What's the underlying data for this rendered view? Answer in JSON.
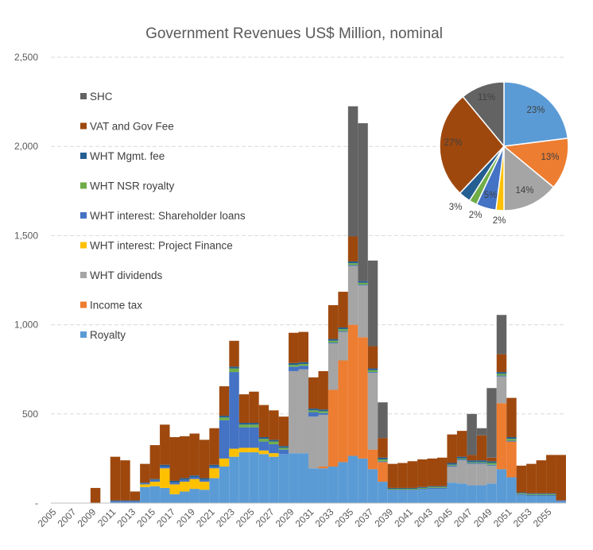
{
  "chart_data": [
    {
      "type": "bar",
      "stacked": true,
      "title": "Government Revenues US$ Million, nominal",
      "xlabel": "",
      "ylabel": "",
      "ylim": [
        0,
        2500
      ],
      "yticks": [
        "-",
        "500",
        "1,000",
        "1,500",
        "2,000",
        "2,500"
      ],
      "grid": "horizontal dashed",
      "legend_position": "upper-left inside plot",
      "categories": [
        2005,
        2006,
        2007,
        2008,
        2009,
        2010,
        2011,
        2012,
        2013,
        2014,
        2015,
        2016,
        2017,
        2018,
        2019,
        2020,
        2021,
        2022,
        2023,
        2024,
        2025,
        2026,
        2027,
        2028,
        2029,
        2030,
        2031,
        2032,
        2033,
        2034,
        2035,
        2036,
        2037,
        2038,
        2039,
        2040,
        2041,
        2042,
        2043,
        2044,
        2045,
        2046,
        2047,
        2048,
        2049,
        2050,
        2051,
        2052,
        2053,
        2054,
        2055,
        2056
      ],
      "xtick_labels": [
        "2005",
        "2007",
        "2009",
        "2011",
        "2013",
        "2015",
        "2017",
        "2019",
        "2021",
        "2023",
        "2025",
        "2027",
        "2029",
        "2031",
        "2033",
        "2035",
        "2037",
        "2039",
        "2041",
        "2043",
        "2045",
        "2047",
        "2049",
        "2051",
        "2053",
        "2055"
      ],
      "series": [
        {
          "name": "Royalty",
          "color": "#5B9BD5",
          "values": [
            0,
            0,
            0,
            0,
            0,
            0,
            5,
            5,
            5,
            90,
            95,
            85,
            50,
            65,
            80,
            75,
            140,
            205,
            260,
            285,
            285,
            275,
            260,
            275,
            280,
            280,
            195,
            195,
            205,
            230,
            265,
            250,
            190,
            120,
            70,
            70,
            70,
            75,
            80,
            80,
            115,
            110,
            100,
            100,
            110,
            190,
            145,
            45,
            40,
            40,
            40,
            10
          ]
        },
        {
          "name": "Income tax",
          "color": "#ED7D31",
          "values": [
            0,
            0,
            0,
            0,
            0,
            0,
            0,
            0,
            0,
            0,
            0,
            0,
            0,
            0,
            0,
            0,
            0,
            0,
            0,
            0,
            0,
            0,
            0,
            0,
            0,
            0,
            0,
            10,
            430,
            570,
            735,
            680,
            110,
            110,
            0,
            0,
            0,
            0,
            0,
            0,
            0,
            0,
            0,
            0,
            0,
            370,
            200,
            0,
            0,
            0,
            0,
            0
          ]
        },
        {
          "name": "WHT dividends",
          "color": "#A5A5A5",
          "values": [
            0,
            0,
            0,
            0,
            0,
            0,
            0,
            0,
            0,
            0,
            0,
            0,
            0,
            0,
            0,
            0,
            0,
            0,
            0,
            0,
            0,
            0,
            0,
            0,
            460,
            470,
            290,
            290,
            260,
            160,
            330,
            290,
            430,
            0,
            0,
            0,
            0,
            0,
            0,
            0,
            90,
            130,
            120,
            120,
            100,
            150,
            0,
            0,
            0,
            0,
            0,
            0
          ]
        },
        {
          "name": "WHT interest: Project Finance",
          "color": "#FFC000",
          "values": [
            0,
            0,
            0,
            0,
            0,
            0,
            0,
            0,
            0,
            15,
            25,
            110,
            55,
            55,
            55,
            45,
            55,
            45,
            45,
            25,
            25,
            20,
            20,
            0,
            0,
            0,
            0,
            0,
            0,
            0,
            0,
            0,
            0,
            0,
            0,
            0,
            0,
            0,
            0,
            0,
            0,
            0,
            0,
            0,
            0,
            0,
            0,
            0,
            0,
            0,
            0,
            0
          ]
        },
        {
          "name": "WHT interest: Shareholder loans",
          "color": "#4472C4",
          "values": [
            0,
            0,
            0,
            0,
            0,
            0,
            5,
            5,
            5,
            5,
            10,
            10,
            10,
            10,
            10,
            10,
            10,
            215,
            430,
            115,
            115,
            50,
            50,
            25,
            25,
            20,
            25,
            10,
            5,
            5,
            5,
            5,
            5,
            5,
            5,
            5,
            5,
            5,
            5,
            5,
            5,
            5,
            5,
            5,
            5,
            5,
            5,
            5,
            5,
            5,
            5,
            5
          ]
        },
        {
          "name": "WHT NSR royalty",
          "color": "#70AD47",
          "values": [
            0,
            0,
            0,
            0,
            0,
            0,
            0,
            0,
            0,
            0,
            0,
            0,
            0,
            0,
            0,
            0,
            0,
            15,
            20,
            15,
            15,
            15,
            15,
            10,
            10,
            10,
            10,
            10,
            10,
            10,
            10,
            10,
            10,
            10,
            5,
            5,
            5,
            5,
            5,
            5,
            5,
            5,
            5,
            5,
            10,
            10,
            10,
            5,
            5,
            5,
            5,
            0
          ]
        },
        {
          "name": "WHT Mgmt. fee",
          "color": "#255E91",
          "values": [
            0,
            0,
            0,
            0,
            0,
            0,
            5,
            5,
            5,
            5,
            5,
            10,
            10,
            10,
            10,
            10,
            10,
            10,
            10,
            10,
            10,
            10,
            10,
            10,
            10,
            10,
            10,
            10,
            10,
            10,
            10,
            10,
            10,
            10,
            5,
            5,
            5,
            5,
            5,
            5,
            10,
            10,
            10,
            10,
            10,
            10,
            10,
            5,
            5,
            5,
            5,
            0
          ]
        },
        {
          "name": "VAT and Gov Fee",
          "color": "#9E480E",
          "values": [
            0,
            0,
            0,
            0,
            85,
            0,
            245,
            225,
            50,
            105,
            190,
            225,
            245,
            235,
            235,
            215,
            205,
            165,
            145,
            160,
            175,
            180,
            165,
            165,
            170,
            170,
            175,
            215,
            190,
            200,
            140,
            0,
            125,
            110,
            135,
            140,
            150,
            155,
            155,
            160,
            160,
            145,
            30,
            140,
            20,
            100,
            220,
            150,
            165,
            185,
            215,
            255
          ]
        },
        {
          "name": "SHC",
          "color": "#636363",
          "values": [
            0,
            0,
            0,
            0,
            0,
            0,
            0,
            0,
            0,
            0,
            0,
            0,
            0,
            0,
            0,
            0,
            0,
            0,
            0,
            0,
            0,
            0,
            0,
            0,
            0,
            0,
            0,
            0,
            0,
            0,
            730,
            885,
            480,
            200,
            0,
            0,
            0,
            0,
            0,
            0,
            0,
            0,
            230,
            40,
            390,
            220,
            0,
            0,
            0,
            0,
            0,
            0
          ]
        }
      ]
    },
    {
      "type": "pie",
      "slices": [
        {
          "name": "Royalty",
          "value": 23,
          "label": "23%",
          "color": "#5B9BD5"
        },
        {
          "name": "Income tax",
          "value": 13,
          "label": "13%",
          "color": "#ED7D31"
        },
        {
          "name": "WHT dividends",
          "value": 14,
          "label": "14%",
          "color": "#A5A5A5"
        },
        {
          "name": "WHT interest: Project Finance",
          "value": 2,
          "label": "2%",
          "color": "#FFC000"
        },
        {
          "name": "WHT interest: Shareholder loans",
          "value": 5,
          "label": "5%",
          "color": "#4472C4"
        },
        {
          "name": "WHT NSR royalty",
          "value": 2,
          "label": "2%",
          "color": "#70AD47"
        },
        {
          "name": "WHT Mgmt. fee",
          "value": 3,
          "label": "3%",
          "color": "#255E91"
        },
        {
          "name": "VAT and Gov Fee",
          "value": 27,
          "label": "27%",
          "color": "#9E480E"
        },
        {
          "name": "SHC",
          "value": 11,
          "label": "11%",
          "color": "#636363"
        }
      ]
    }
  ]
}
